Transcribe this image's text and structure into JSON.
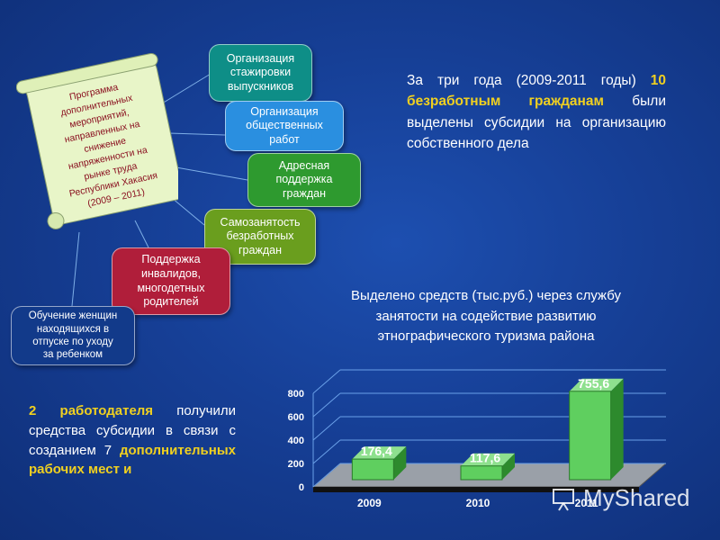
{
  "scroll": {
    "lines": [
      "Программа",
      "дополнительных",
      "мероприятий,",
      "направленных на",
      "снижение",
      "напряженности на",
      "рынке труда",
      "Республики Хакасия",
      "(2009 – 2011)"
    ]
  },
  "boxes": [
    {
      "id": "box1",
      "text": "Организация\nстажировки\nвыпускников",
      "color": "#0e8e87"
    },
    {
      "id": "box2",
      "text": "Организация\nобщественных\nработ",
      "color": "#2a8fe0"
    },
    {
      "id": "box3",
      "text": "Адресная\nподдержка\nграждан",
      "color": "#2e9a2f"
    },
    {
      "id": "box4",
      "text": "Самозанятость\nбезработных\nграждан",
      "color": "#6a9e1e"
    },
    {
      "id": "box5",
      "text": "Поддержка\nинвалидов,\nмногодетных\nродителей",
      "color": "#b01e3a"
    },
    {
      "id": "box6",
      "text": "Обучение женщин\nнаходящихся в\nотпуске по уходу\nза ребенком",
      "color": "#123a8a"
    }
  ],
  "right_text": {
    "prefix": "За три года (2009-2011 годы) ",
    "highlight": "10 безработным гражданам",
    "suffix": " были выделены субсидии на организацию собственного дела"
  },
  "bottom_text": {
    "highlight1": "2 работодателя",
    "middle": " получили средства субсидии в связи с созданием 7 ",
    "highlight2": "дополнительных рабочих мест и"
  },
  "chart_title": {
    "line1": "Выделено средств (тыс.руб.) через службу",
    "line2": "занятости на содействие развитию",
    "line3": "этнографического туризма района"
  },
  "chart_data": {
    "type": "bar",
    "categories": [
      "2009",
      "2010",
      "2011"
    ],
    "values": [
      176.4,
      117.6,
      755.6
    ],
    "value_labels": [
      "176,4",
      "117,6",
      "755,6"
    ],
    "ylim": [
      0,
      800
    ],
    "yticks": [
      "0",
      "200",
      "400",
      "600",
      "800"
    ],
    "bar_color": "#5fcf5f",
    "grid": true
  },
  "watermark": {
    "text": "MyShared"
  },
  "colors": {
    "highlight": "#f0d020",
    "background": "#1a48a6"
  }
}
